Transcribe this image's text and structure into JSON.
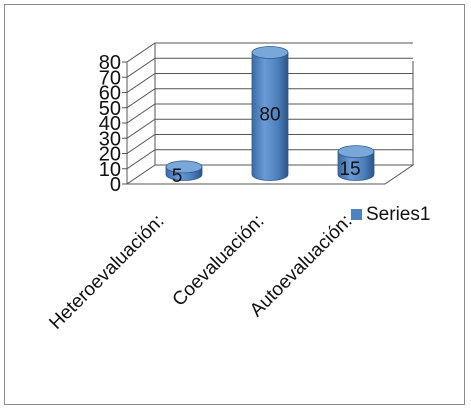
{
  "chart_data": {
    "type": "bar",
    "categories": [
      "Heteroevaluación:",
      "Coevaluación:",
      "Autoevaluación:"
    ],
    "series": [
      {
        "name": "Series1",
        "values": [
          5,
          80,
          15
        ]
      }
    ],
    "data_labels": [
      "5",
      "80",
      "15"
    ],
    "yticks": [
      0,
      10,
      20,
      30,
      40,
      50,
      60,
      70,
      80
    ],
    "ylim": [
      0,
      80
    ],
    "grid": true,
    "legend": "right",
    "bar_style": "3d-cylinder",
    "colors": {
      "bar": "#4f81bd",
      "bar_dark": "#2e5a8c",
      "bar_top": "#7aa7d9",
      "grid": "#555555"
    }
  }
}
